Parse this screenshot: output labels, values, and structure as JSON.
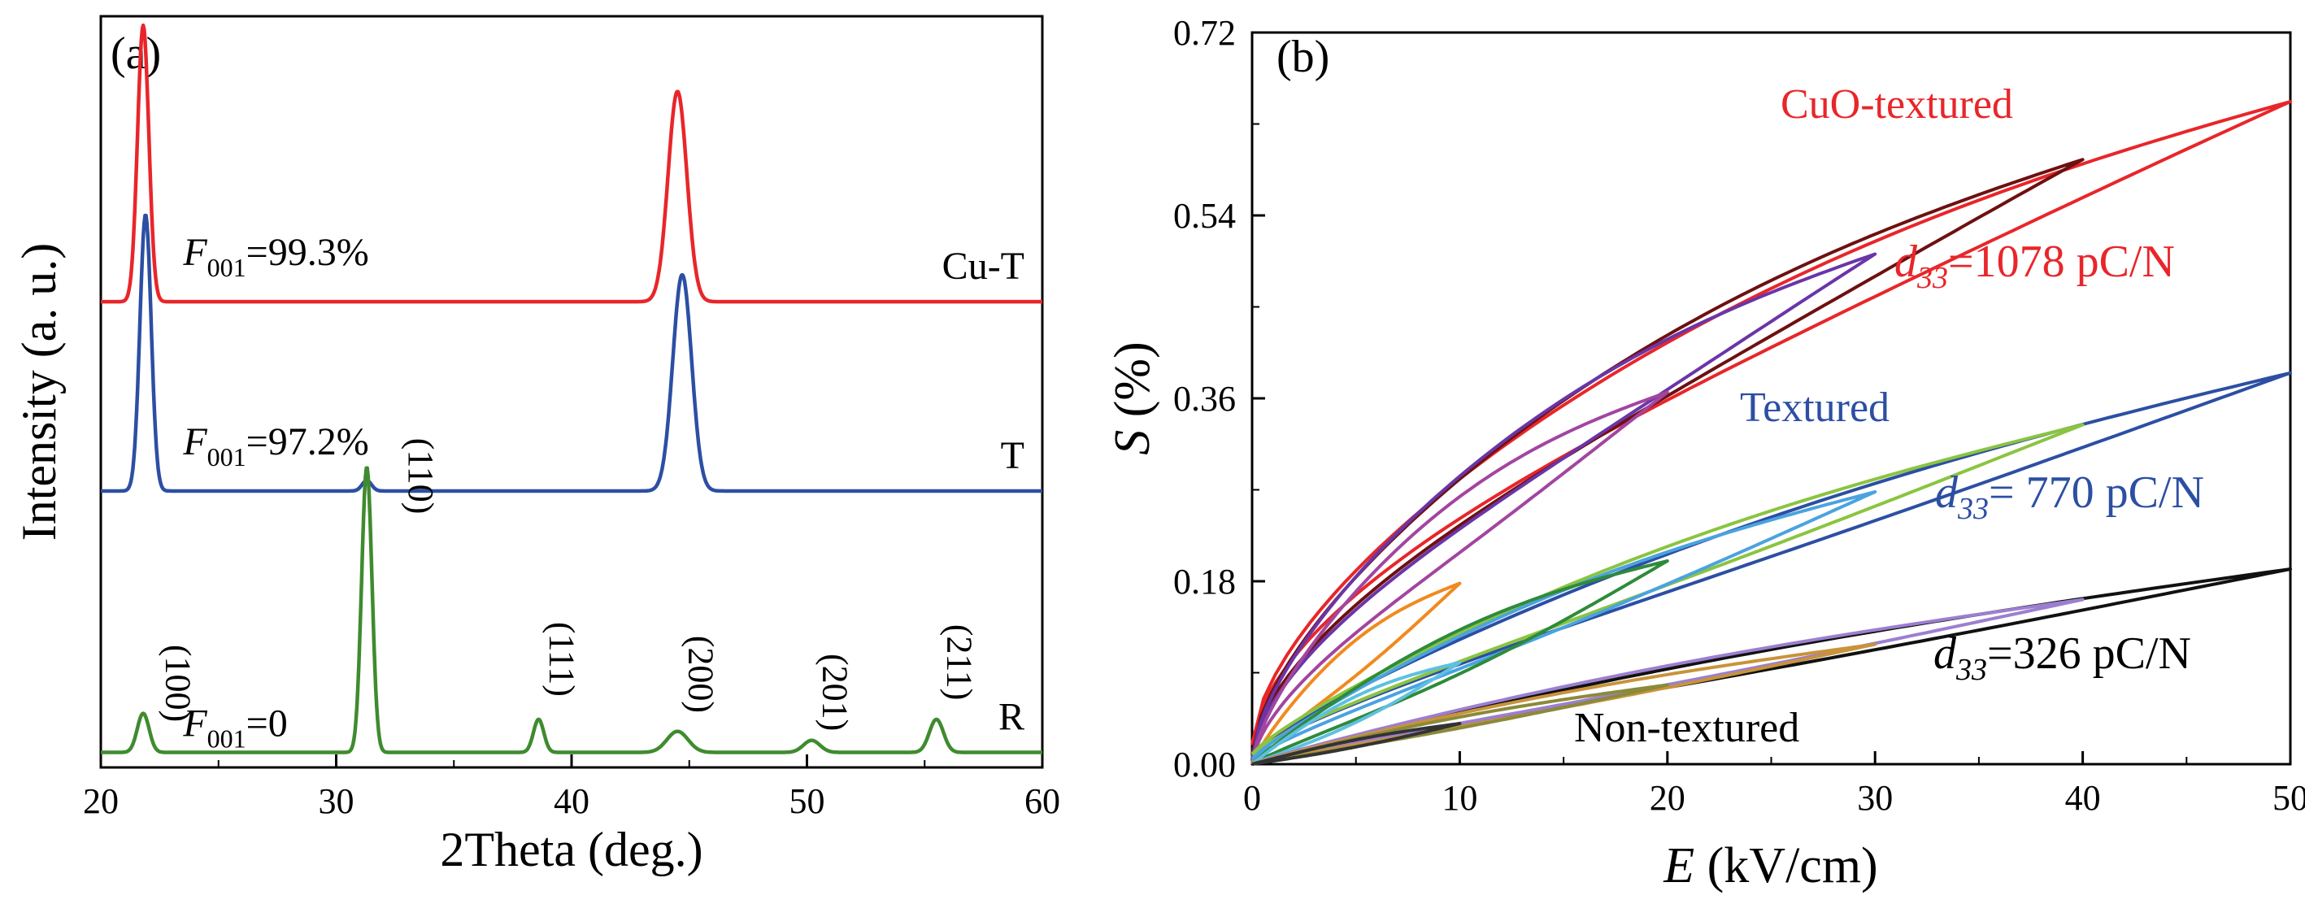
{
  "chart_data": [
    {
      "type": "line",
      "panel_label": "(a)",
      "xlabel": "2Theta (deg.)",
      "ylabel": "Intensity (a. u.)",
      "xlim": [
        20,
        60
      ],
      "xticks": [
        "20",
        "30",
        "40",
        "50",
        "60"
      ],
      "series": [
        {
          "name": "Cu-T",
          "color": "#e8262a",
          "baseline": 1.55,
          "f001_sym": "F",
          "f001_sub": "001",
          "f001_value": "=99.3%",
          "peaks": [
            {
              "x": 21.8,
              "h": 0.92,
              "w": 0.24
            },
            {
              "x": 44.5,
              "h": 0.7,
              "w": 0.4
            }
          ]
        },
        {
          "name": "T",
          "color": "#2c4fa3",
          "baseline": 0.92,
          "f001_sym": "F",
          "f001_sub": "001",
          "f001_value": "=97.2%",
          "peaks": [
            {
              "x": 21.9,
              "h": 0.92,
              "w": 0.24
            },
            {
              "x": 31.3,
              "h": 0.035,
              "w": 0.2
            },
            {
              "x": 44.7,
              "h": 0.72,
              "w": 0.4
            }
          ]
        },
        {
          "name": "R",
          "color": "#3f8b2f",
          "baseline": 0.05,
          "f001_sym": "F",
          "f001_sub": "001",
          "f001_value": "=0",
          "peaks": [
            {
              "x": 21.8,
              "h": 0.13,
              "w": 0.25
            },
            {
              "x": 31.3,
              "h": 0.95,
              "w": 0.22
            },
            {
              "x": 38.6,
              "h": 0.11,
              "w": 0.22
            },
            {
              "x": 44.5,
              "h": 0.07,
              "w": 0.45
            },
            {
              "x": 50.2,
              "h": 0.04,
              "w": 0.35
            },
            {
              "x": 55.5,
              "h": 0.11,
              "w": 0.3
            }
          ]
        }
      ],
      "peak_labels": [
        {
          "text": "(100)",
          "x": 22.3,
          "y": 0.28
        },
        {
          "text": "(110)",
          "x": 32.6,
          "y": 0.97
        },
        {
          "text": "(111)",
          "x": 38.6,
          "y": 0.36
        },
        {
          "text": "(200)",
          "x": 44.5,
          "y": 0.31
        },
        {
          "text": "(201)",
          "x": 50.2,
          "y": 0.25
        },
        {
          "text": "(211)",
          "x": 55.5,
          "y": 0.35
        }
      ]
    },
    {
      "type": "line",
      "panel_label": "(b)",
      "xlabel_sym": "E",
      "xlabel_unit": " (kV/cm)",
      "ylabel_sym": "S",
      "ylabel_unit": " (%)",
      "xlim": [
        0,
        50
      ],
      "ylim": [
        0,
        0.72
      ],
      "xticks": [
        "0",
        "10",
        "20",
        "30",
        "40",
        "50"
      ],
      "yticks": [
        "0.00",
        "0.18",
        "0.36",
        "0.54",
        "0.72"
      ],
      "groups": [
        {
          "name": "CuO-textured",
          "name_color": "#e8262a",
          "d33_sym": "d",
          "d33_sub": "33",
          "d33_value": "=1078 pC/N",
          "d33_color": "#e8262a",
          "loops": [
            {
              "emax": 50,
              "smax": 0.652,
              "color": "#e8262a",
              "p": 0.6,
              "offset": 0.028,
              "origin": 0.02
            },
            {
              "emax": 40,
              "smax": 0.595,
              "color": "#6e1010",
              "p": 0.62,
              "offset": 0.03,
              "origin": 0.01
            },
            {
              "emax": 30,
              "smax": 0.502,
              "color": "#6a35a8",
              "p": 0.62,
              "offset": 0.03,
              "origin": 0.005
            },
            {
              "emax": 20,
              "smax": 0.366,
              "color": "#a245a0",
              "p": 0.65,
              "offset": 0.03,
              "origin": 0
            },
            {
              "emax": 10,
              "smax": 0.178,
              "color": "#f08a1f",
              "p": 0.8,
              "offset": 0.02,
              "origin": 0
            }
          ]
        },
        {
          "name": "Textured",
          "name_color": "#2c4fa3",
          "d33_sym": "d",
          "d33_sub": "33",
          "d33_value": "= 770 pC/N",
          "d33_color": "#2c4fa3",
          "loops": [
            {
              "emax": 50,
              "smax": 0.385,
              "color": "#2c4fa3",
              "p": 0.82,
              "offset": 0.02,
              "origin": 0.01
            },
            {
              "emax": 40,
              "smax": 0.334,
              "color": "#8ac441",
              "p": 0.82,
              "offset": 0.02,
              "origin": 0.01
            },
            {
              "emax": 30,
              "smax": 0.268,
              "color": "#4aa3df",
              "p": 0.85,
              "offset": 0.02,
              "origin": 0.005
            },
            {
              "emax": 20,
              "smax": 0.2,
              "color": "#2e8b3a",
              "p": 0.9,
              "offset": 0.025,
              "origin": 0
            },
            {
              "emax": 10,
              "smax": 0.1,
              "color": "#5fc0e0",
              "p": 0.95,
              "offset": 0.015,
              "origin": 0
            }
          ]
        },
        {
          "name": "Non-textured",
          "name_color": "#000000",
          "d33_sym": "d",
          "d33_sub": "33",
          "d33_value": "=326 pC/N",
          "d33_color": "#000000",
          "loops": [
            {
              "emax": 50,
              "smax": 0.192,
              "color": "#111111",
              "p": 0.9,
              "offset": 0.01,
              "origin": 0
            },
            {
              "emax": 40,
              "smax": 0.162,
              "color": "#9c7fd0",
              "p": 0.9,
              "offset": 0.01,
              "origin": 0
            },
            {
              "emax": 30,
              "smax": 0.118,
              "color": "#c9933a",
              "p": 0.92,
              "offset": 0.008,
              "origin": 0
            },
            {
              "emax": 20,
              "smax": 0.078,
              "color": "#8a8a3a",
              "p": 0.95,
              "offset": 0.006,
              "origin": 0
            },
            {
              "emax": 10,
              "smax": 0.04,
              "color": "#333333",
              "p": 1.0,
              "offset": 0.004,
              "origin": 0
            }
          ]
        }
      ]
    }
  ]
}
